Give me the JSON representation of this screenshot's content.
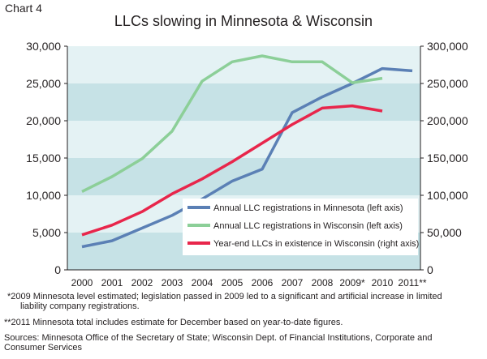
{
  "chart_label": "Chart 4",
  "footnotes": {
    "note1": "*2009 Minnesota level estimated; legislation passed in 2009 led to a significant and artificial increase in limited",
    "note1_cont": "liability company registrations.",
    "note2": "**2011 Minnesota total includes estimate for December based on year-to-date figures.",
    "sources": "Sources: Minnesota Office of the Secretary of State; Wisconsin Dept. of Financial Institutions, Corporate and",
    "sources_cont": "Consumer Services"
  },
  "colors": {
    "minnesota": "#5b80b5",
    "wisconsin": "#8ccf98",
    "existence": "#e8264b",
    "band_dark": "#c6e2e6",
    "band_light": "#e4f2f4"
  },
  "chart_data": {
    "type": "line",
    "title": "LLCs slowing in Minnesota & Wisconsin",
    "x": [
      "2000",
      "2001",
      "2002",
      "2003",
      "2004",
      "2005",
      "2006",
      "2007",
      "2008",
      "2009*",
      "2010",
      "2011**"
    ],
    "ylim_left": [
      0,
      30000
    ],
    "yticks_left": [
      "0",
      "5,000",
      "10,000",
      "15,000",
      "20,000",
      "25,000",
      "30,000"
    ],
    "ylim_right": [
      0,
      300000
    ],
    "yticks_right": [
      "0",
      "50,000",
      "100,000",
      "150,000",
      "200,000",
      "250,000",
      "300,000"
    ],
    "legend_position": "bottom-right",
    "series": [
      {
        "name": "Annual LLC registrations in Minnesota (left axis)",
        "axis": "left",
        "values": [
          3100,
          3900,
          5600,
          7300,
          9500,
          11900,
          13500,
          21100,
          23200,
          25000,
          27000,
          26700
        ]
      },
      {
        "name": "Annual LLC registrations in Wisconsin (left axis)",
        "axis": "left",
        "values": [
          10500,
          12500,
          14900,
          18600,
          25300,
          27900,
          28700,
          27900,
          27900,
          25100,
          25700,
          null
        ]
      },
      {
        "name": "Year-end LLCs in existence in Wisconsin (right axis)",
        "axis": "right",
        "values": [
          47000,
          60000,
          78000,
          102000,
          122000,
          145000,
          170000,
          195000,
          217000,
          220000,
          213000,
          null
        ]
      }
    ]
  }
}
